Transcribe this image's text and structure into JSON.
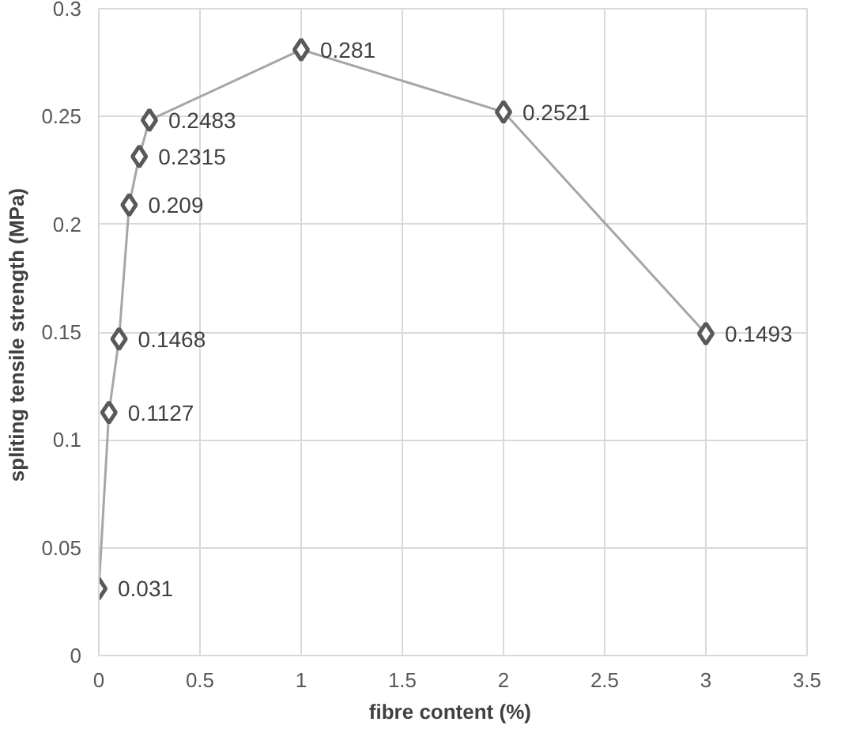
{
  "chart_data": {
    "type": "line",
    "xlabel": "fibre content  (%)",
    "ylabel": "spliting tensile strength  (MPa)",
    "x": [
      0,
      0.05,
      0.1,
      0.15,
      0.2,
      0.25,
      1,
      2,
      3
    ],
    "series": [
      {
        "color": "#a6a6a6",
        "values": [
          0.031,
          0.1127,
          0.1468,
          0.209,
          0.2315,
          0.2483,
          0.281,
          0.2521,
          0.1493
        ]
      }
    ],
    "xlim": [
      0,
      3.5
    ],
    "xticks": [
      0,
      0.5,
      1,
      1.5,
      2,
      2.5,
      3,
      3.5
    ],
    "ylim": [
      0,
      0.3
    ],
    "yticks": [
      0,
      0.05,
      0.1,
      0.15,
      0.2,
      0.25,
      0.3
    ],
    "grid": true,
    "marker": "diamond",
    "data_labels": true
  }
}
